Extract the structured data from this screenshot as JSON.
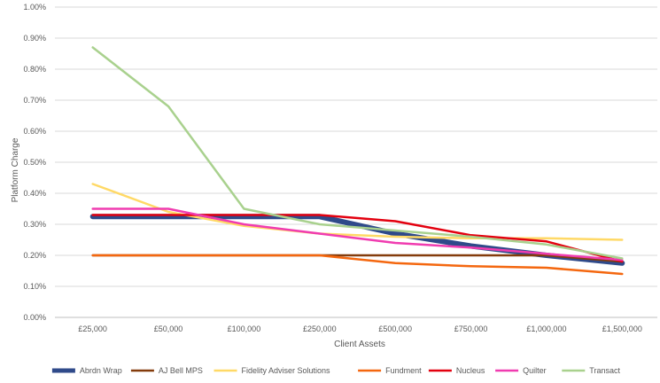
{
  "chart_data": {
    "type": "line",
    "title": "",
    "xlabel": "Client Assets",
    "ylabel": "Platform Charge",
    "ylim": [
      0,
      1.0
    ],
    "y_ticks": [
      "0.00%",
      "0.10%",
      "0.20%",
      "0.30%",
      "0.40%",
      "0.50%",
      "0.60%",
      "0.70%",
      "0.80%",
      "0.90%",
      "1.00%"
    ],
    "grid": true,
    "legend_position": "bottom",
    "categories": [
      "£25,000",
      "£50,000",
      "£100,000",
      "£250,000",
      "£500,000",
      "£750,000",
      "£1,000,000",
      "£1,500,000"
    ],
    "series": [
      {
        "name": "Abrdn Wrap",
        "color": "#2F4A8A",
        "weight": "thick",
        "values": [
          0.325,
          0.325,
          0.325,
          0.325,
          0.27,
          0.23,
          0.2,
          0.175
        ]
      },
      {
        "name": "AJ Bell MPS",
        "color": "#843C0C",
        "weight": "normal",
        "values": [
          0.2,
          0.2,
          0.2,
          0.2,
          0.2,
          0.2,
          0.2,
          0.18
        ]
      },
      {
        "name": "Fidelity Adviser Solutions",
        "color": "#FFD966",
        "weight": "normal",
        "values": [
          0.43,
          0.34,
          0.295,
          0.27,
          0.26,
          0.255,
          0.255,
          0.25
        ]
      },
      {
        "name": "Fundment",
        "color": "#F4670F",
        "weight": "normal",
        "values": [
          0.2,
          0.2,
          0.2,
          0.2,
          0.175,
          0.165,
          0.16,
          0.14
        ]
      },
      {
        "name": "Nucleus",
        "color": "#E3000F",
        "weight": "normal",
        "values": [
          0.33,
          0.33,
          0.33,
          0.33,
          0.31,
          0.265,
          0.245,
          0.18
        ]
      },
      {
        "name": "Quilter",
        "color": "#F03CB0",
        "weight": "normal",
        "values": [
          0.35,
          0.35,
          0.3,
          0.27,
          0.24,
          0.225,
          0.205,
          0.185
        ]
      },
      {
        "name": "Transact",
        "color": "#A9D18E",
        "weight": "normal",
        "values": [
          0.87,
          0.68,
          0.35,
          0.3,
          0.28,
          0.26,
          0.235,
          0.19
        ]
      }
    ]
  }
}
